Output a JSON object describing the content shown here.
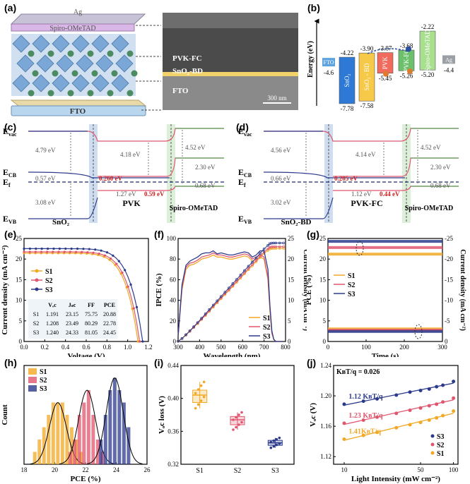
{
  "panel_labels": [
    "(a)",
    "(b)",
    "(c)",
    "(d)",
    "(e)",
    "(f)",
    "(g)",
    "(h)",
    "(i)",
    "(j)"
  ],
  "colors": {
    "S1": "#f2a824",
    "S2": "#e0566e",
    "S3": "#2c3a8c",
    "tem": "#555555",
    "layer_bg": "#eef4f8"
  },
  "panel_a": {
    "schematic_labels": {
      "ag": "Ag",
      "spiro": "Spiro-OMeTAD",
      "fto": "FTO"
    },
    "tem_labels": {
      "pvk": "PVK-FC",
      "sno2": "SnO₂-BD",
      "fto": "FTO",
      "scale": "300 nm"
    }
  },
  "panel_b": {
    "ylabel": "Energy (eV)",
    "levels": [
      {
        "name": "FTO",
        "color": "#5ea3e0",
        "top": "-4.6"
      },
      {
        "name": "SnO₂",
        "color": "#2e78d6",
        "top": "-4.22",
        "bottom": "-7.78"
      },
      {
        "name": "SnO₂ - BD",
        "color": "#f7c948",
        "top": "-3.90",
        "bottom": "-7.58"
      },
      {
        "name": "PVK",
        "color": "#f06b5b",
        "top": "-3.87",
        "bottom": "-5.45"
      },
      {
        "name": "PVK-FC",
        "color": "#6cc06c",
        "top": "-3.68",
        "bottom": "-5.26"
      },
      {
        "name": "Spiro-OMeTAD",
        "color": "#a8e08f",
        "top": "-2.22",
        "bottom": "-5.20"
      },
      {
        "name": "Ag",
        "color": "#9aa0a6",
        "top": "-4.4"
      }
    ]
  },
  "panel_c": {
    "left_labels": [
      "E",
      "vac",
      "E",
      "CB",
      "E",
      "f",
      "E",
      "VB"
    ],
    "values": [
      "4.79 eV",
      "0.57 eV",
      "3.08 eV",
      "4.18 eV",
      "0.260 eV",
      "1.27 eV",
      "0.59 eV",
      "4.52 eV",
      "2.30 eV",
      "0.68 eV"
    ],
    "layers": [
      "SnO₂",
      "PVK",
      "Spiro-OMeTAD"
    ]
  },
  "panel_d": {
    "left_labels": [
      "E",
      "vac",
      "E",
      "CB",
      "E",
      "f",
      "E",
      "VB"
    ],
    "values": [
      "4.56 eV",
      "0.66 eV",
      "3.02 eV",
      "4.14 eV",
      "0.205 eV",
      "1.12 eV",
      "0.44 eV",
      "4.52 eV",
      "2.30 eV",
      "0.68 eV"
    ],
    "layers": [
      "SnO₂-BD",
      "PVK-FC",
      "Spiro-OMeTAD"
    ]
  },
  "chart_data": [
    {
      "panel": "e",
      "type": "line",
      "xlabel": "Voltage (V)",
      "ylabel": "Current density (mA cm⁻²)",
      "xlim": [
        0,
        1.3
      ],
      "ylim": [
        0,
        27
      ],
      "xticks": [
        "0.0",
        "0.2",
        "0.4",
        "0.6",
        "0.8",
        "1.0",
        "1.2"
      ],
      "yticks": [
        "0",
        "5",
        "10",
        "15",
        "20",
        "25"
      ],
      "series": [
        {
          "name": "S1",
          "voc": 1.191,
          "jsc": 23.15
        },
        {
          "name": "S2",
          "voc": 1.208,
          "jsc": 23.49
        },
        {
          "name": "S3",
          "voc": 1.24,
          "jsc": 24.33
        }
      ],
      "table": {
        "headers": [
          "",
          "Vₒc",
          "Jₛc",
          "FF",
          "PCE"
        ],
        "rows": [
          [
            "S1",
            "1.191",
            "23.15",
            "75.75",
            "20.88"
          ],
          [
            "S2",
            "1.208",
            "23.49",
            "80.29",
            "22.78"
          ],
          [
            "S3",
            "1.240",
            "24.33",
            "81.05",
            "24.45"
          ]
        ]
      }
    },
    {
      "panel": "f",
      "type": "line",
      "xlabel": "Wavelength (nm)",
      "ylabel": "IPCE (%)",
      "y2label": "Current density (mA cm⁻²)",
      "xlim": [
        300,
        850
      ],
      "ylim": [
        0,
        100
      ],
      "y2lim": [
        0,
        25
      ],
      "xticks": [
        "300",
        "400",
        "500",
        "600",
        "700",
        "800"
      ],
      "yticks": [
        "0",
        "20",
        "40",
        "60",
        "80",
        "100"
      ],
      "y2ticks": [
        "0",
        "5",
        "10",
        "15",
        "20",
        "25"
      ],
      "ipce_x": [
        300,
        320,
        340,
        360,
        380,
        400,
        420,
        440,
        460,
        480,
        500,
        520,
        540,
        560,
        580,
        600,
        620,
        640,
        660,
        680,
        700,
        720,
        740,
        760,
        770,
        780,
        790,
        800,
        820,
        840
      ],
      "series": [
        {
          "name": "S1",
          "ipce": [
            5,
            50,
            70,
            74,
            75,
            77,
            80,
            81,
            82,
            84,
            82,
            82,
            81,
            80,
            80,
            81,
            82,
            83,
            82,
            78,
            80,
            82,
            80,
            60,
            30,
            8,
            2,
            0,
            0,
            0
          ],
          "integrated": 22.6
        },
        {
          "name": "S2",
          "ipce": [
            5,
            52,
            72,
            76,
            77,
            79,
            82,
            83,
            84,
            86,
            84,
            84,
            83,
            82,
            82,
            83,
            84,
            85,
            84,
            80,
            82,
            84,
            82,
            62,
            32,
            8,
            2,
            0,
            0,
            0
          ],
          "integrated": 23.0
        },
        {
          "name": "S3",
          "ipce": [
            5,
            55,
            74,
            78,
            80,
            82,
            85,
            86,
            86,
            88,
            85,
            86,
            85,
            84,
            84,
            85,
            86,
            87,
            86,
            82,
            84,
            88,
            88,
            70,
            35,
            10,
            2,
            0,
            0,
            0
          ],
          "integrated": 23.9
        }
      ]
    },
    {
      "panel": "g",
      "type": "line",
      "xlabel": "Time (s)",
      "ylabel": "PCE (%)",
      "y2label": "Current density (mA cm⁻²)",
      "xlim": [
        0,
        300
      ],
      "ylim": [
        0,
        25
      ],
      "y2lim": [
        -25,
        0
      ],
      "xticks": [
        "0",
        "100",
        "200",
        "300"
      ],
      "yticks": [
        "0",
        "5",
        "10",
        "15",
        "20",
        "25"
      ],
      "y2ticks": [
        "0",
        "-5",
        "-10",
        "-15",
        "-20",
        "-25"
      ],
      "series": [
        {
          "name": "S1",
          "pce": 21.2,
          "jsc": -2.6
        },
        {
          "name": "S2",
          "pce": 22.8,
          "jsc": -2.0
        },
        {
          "name": "S3",
          "pce": 24.3,
          "jsc": -1.4
        }
      ]
    },
    {
      "panel": "h",
      "type": "bar",
      "xlabel": "PCE (%)",
      "ylabel": "Count",
      "xlim": [
        18,
        26
      ],
      "xticks": [
        "18",
        "20",
        "22",
        "24",
        "26"
      ],
      "series": [
        {
          "name": "S1",
          "bins": [
            18.7,
            19.0,
            19.3,
            19.6,
            19.9,
            20.2,
            20.5,
            20.8,
            21.1,
            21.4,
            21.7
          ],
          "counts": [
            1,
            2,
            3,
            4,
            5,
            5,
            5,
            4,
            3,
            2,
            1
          ],
          "mean": 20.2
        },
        {
          "name": "S2",
          "bins": [
            21.0,
            21.3,
            21.6,
            21.9,
            22.2,
            22.5,
            22.8,
            23.1
          ],
          "counts": [
            1,
            2,
            4,
            5,
            6,
            4,
            2,
            1
          ],
          "mean": 22.1
        },
        {
          "name": "S3",
          "bins": [
            23.0,
            23.3,
            23.6,
            23.9,
            24.2,
            24.5,
            24.8
          ],
          "counts": [
            2,
            4,
            6,
            7,
            6,
            5,
            3
          ],
          "mean": 23.9
        }
      ]
    },
    {
      "panel": "i",
      "type": "scatter",
      "xlabel": "",
      "ylabel": "Vₒc loss (V)",
      "ylim": [
        0.32,
        0.44
      ],
      "yticks": [
        "0.32",
        "0.36",
        "0.40",
        "0.44"
      ],
      "categories": [
        "S1",
        "S2",
        "S3"
      ],
      "series": [
        {
          "name": "S1",
          "median": 0.404,
          "q1": 0.395,
          "q3": 0.41,
          "min": 0.388,
          "max": 0.42
        },
        {
          "name": "S2",
          "median": 0.374,
          "q1": 0.368,
          "q3": 0.378,
          "min": 0.362,
          "max": 0.383
        },
        {
          "name": "S3",
          "median": 0.346,
          "q1": 0.343,
          "q3": 0.349,
          "min": 0.34,
          "max": 0.352
        }
      ]
    },
    {
      "panel": "j",
      "type": "scatter",
      "xlabel": "Light Intensity (mW cm⁻²)",
      "ylabel": "Vₒc (V)",
      "log_x": true,
      "xlim": [
        8,
        110
      ],
      "ylim": [
        1.11,
        1.24
      ],
      "xticks": [
        "10",
        "50",
        "100"
      ],
      "yticks": [
        "1.12",
        "1.16",
        "1.20",
        "1.24"
      ],
      "annotation": "KʙT/q = 0.026",
      "x": [
        10,
        15,
        20,
        30,
        40,
        50,
        60,
        70,
        80,
        100
      ],
      "series": [
        {
          "name": "S3",
          "slope_label": "1.12 KʙT/q",
          "y": [
            1.189,
            1.193,
            1.196,
            1.201,
            1.205,
            1.207,
            1.209,
            1.212,
            1.214,
            1.219
          ]
        },
        {
          "name": "S2",
          "slope_label": "1.23 KʙT/q",
          "y": [
            1.164,
            1.168,
            1.172,
            1.177,
            1.181,
            1.184,
            1.187,
            1.189,
            1.192,
            1.197
          ]
        },
        {
          "name": "S1",
          "slope_label": "1.41KʙT/q",
          "y": [
            1.143,
            1.148,
            1.152,
            1.158,
            1.162,
            1.165,
            1.168,
            1.171,
            1.174,
            1.18
          ]
        }
      ]
    }
  ]
}
